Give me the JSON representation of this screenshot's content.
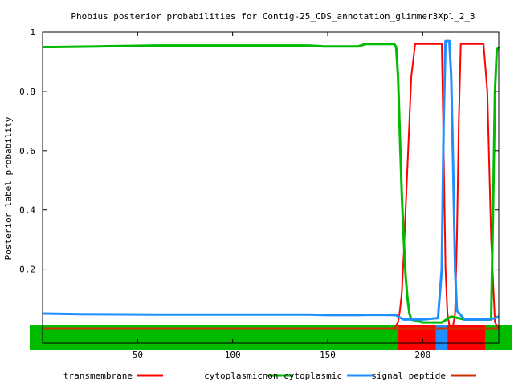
{
  "chart_data": {
    "type": "line",
    "title": "Phobius posterior probabilities for Contig-25_CDS_annotation_glimmer3Xpl_2_3",
    "xlabel": "",
    "ylabel": "Posterior label probability",
    "xlim": [
      0,
      240
    ],
    "ylim": [
      -0.05,
      1.0
    ],
    "x_ticks": [
      "50",
      "100",
      "150",
      "200"
    ],
    "x_tick_values": [
      50,
      100,
      150,
      200
    ],
    "y_ticks": [
      "0.2",
      "0.4",
      "0.6",
      "0.8",
      "1"
    ],
    "y_tick_values": [
      0.2,
      0.4,
      0.6,
      0.8,
      1.0
    ],
    "grid": false,
    "legend_position": "bottom",
    "series": [
      {
        "name": "transmembrane",
        "color": "#ff0000",
        "points": [
          [
            0,
            0.0
          ],
          [
            180,
            0.0
          ],
          [
            185,
            0.0
          ],
          [
            187,
            0.02
          ],
          [
            188,
            0.06
          ],
          [
            189,
            0.12
          ],
          [
            190,
            0.25
          ],
          [
            192,
            0.55
          ],
          [
            194,
            0.85
          ],
          [
            196,
            0.96
          ],
          [
            210,
            0.96
          ],
          [
            211,
            0.6
          ],
          [
            212,
            0.2
          ],
          [
            213,
            0.05
          ],
          [
            214,
            0.01
          ],
          [
            216,
            0.01
          ],
          [
            217,
            0.05
          ],
          [
            218,
            0.3
          ],
          [
            219,
            0.7
          ],
          [
            220,
            0.96
          ],
          [
            232,
            0.96
          ],
          [
            234,
            0.8
          ],
          [
            236,
            0.3
          ],
          [
            238,
            0.02
          ],
          [
            240,
            0.0
          ]
        ]
      },
      {
        "name": "cytoplasmic",
        "color": "#00bb00",
        "points": [
          [
            0,
            0.95
          ],
          [
            5,
            0.95
          ],
          [
            30,
            0.952
          ],
          [
            60,
            0.955
          ],
          [
            100,
            0.955
          ],
          [
            140,
            0.955
          ],
          [
            148,
            0.952
          ],
          [
            166,
            0.952
          ],
          [
            170,
            0.96
          ],
          [
            185,
            0.96
          ],
          [
            186,
            0.95
          ],
          [
            187,
            0.85
          ],
          [
            188,
            0.65
          ],
          [
            189,
            0.45
          ],
          [
            190,
            0.3
          ],
          [
            191,
            0.18
          ],
          [
            192,
            0.1
          ],
          [
            193,
            0.05
          ],
          [
            194,
            0.03
          ],
          [
            200,
            0.02
          ],
          [
            210,
            0.02
          ],
          [
            215,
            0.04
          ],
          [
            222,
            0.03
          ],
          [
            236,
            0.03
          ],
          [
            237,
            0.4
          ],
          [
            238,
            0.8
          ],
          [
            239,
            0.94
          ],
          [
            240,
            0.95
          ]
        ]
      },
      {
        "name": "non cytoplasmic",
        "color": "#1f8fff",
        "points": [
          [
            0,
            0.05
          ],
          [
            20,
            0.048
          ],
          [
            60,
            0.047
          ],
          [
            100,
            0.047
          ],
          [
            140,
            0.047
          ],
          [
            150,
            0.045
          ],
          [
            165,
            0.045
          ],
          [
            175,
            0.046
          ],
          [
            186,
            0.045
          ],
          [
            187,
            0.04
          ],
          [
            190,
            0.03
          ],
          [
            200,
            0.03
          ],
          [
            208,
            0.035
          ],
          [
            210,
            0.2
          ],
          [
            211,
            0.7
          ],
          [
            212,
            0.97
          ],
          [
            214,
            0.97
          ],
          [
            215,
            0.85
          ],
          [
            216,
            0.55
          ],
          [
            217,
            0.2
          ],
          [
            218,
            0.06
          ],
          [
            222,
            0.03
          ],
          [
            235,
            0.03
          ],
          [
            238,
            0.035
          ],
          [
            240,
            0.04
          ]
        ]
      },
      {
        "name": "signal peptide",
        "color": "#cc3300",
        "points": [
          [
            0,
            0.0
          ],
          [
            240,
            0.0
          ]
        ]
      }
    ],
    "topology_bar": [
      {
        "label": "cytoplasmic",
        "start": 0,
        "end": 187,
        "color": "#00bb00"
      },
      {
        "label": "transmembrane",
        "start": 187,
        "end": 207,
        "color": "#ff0000"
      },
      {
        "label": "non cytoplasmic",
        "start": 207,
        "end": 213,
        "color": "#1f8fff"
      },
      {
        "label": "transmembrane",
        "start": 213,
        "end": 233,
        "color": "#ff0000"
      },
      {
        "label": "cytoplasmic",
        "start": 233,
        "end": 240,
        "color": "#00bb00"
      }
    ]
  }
}
